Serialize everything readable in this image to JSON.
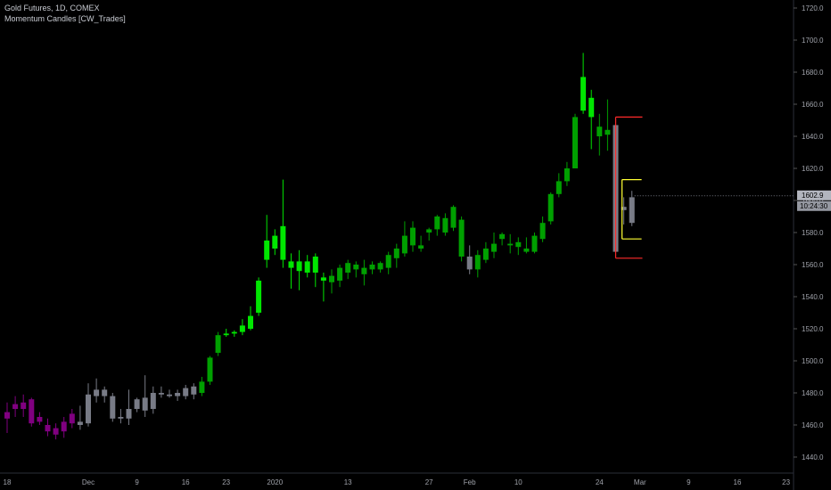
{
  "header": {
    "symbol_line": "Gold Futures, 1D, COMEX",
    "indicator_line": "Momentum Candles [CW_Trades]"
  },
  "price_axis": {
    "ticks": [
      "1440.0",
      "1460.0",
      "1480.0",
      "1500.0",
      "1520.0",
      "1540.0",
      "1560.0",
      "1580.0",
      "1600.0",
      "1620.0",
      "1640.0",
      "1660.0",
      "1680.0",
      "1700.0",
      "1720.0"
    ],
    "last_price_label": "1602.9",
    "countdown_label": "10:24:30"
  },
  "time_axis": {
    "labels": [
      "18",
      "Dec",
      "9",
      "16",
      "23",
      "2020",
      "13",
      "27",
      "Feb",
      "10",
      "24",
      "Mar",
      "9",
      "16",
      "23"
    ]
  },
  "colors": {
    "background": "#000000",
    "bull_bright": "#00e600",
    "bull_dark": "#00a000",
    "bear": "#800080",
    "neutral": "#787b86",
    "red_level": "#ff2a2a",
    "yellow_level": "#ffff33"
  },
  "chart_data": {
    "type": "candlestick",
    "title": "Gold Futures, 1D, COMEX",
    "indicator": "Momentum Candles [CW_Trades]",
    "ylim": [
      1430,
      1725
    ],
    "candles": [
      {
        "o": 1468,
        "h": 1474,
        "l": 1455,
        "c": 1464,
        "color": "bear"
      },
      {
        "o": 1470,
        "h": 1478,
        "l": 1465,
        "c": 1473,
        "color": "bear"
      },
      {
        "o": 1474,
        "h": 1479,
        "l": 1465,
        "c": 1470,
        "color": "bear"
      },
      {
        "o": 1476,
        "h": 1477,
        "l": 1459,
        "c": 1461,
        "color": "bear"
      },
      {
        "o": 1465,
        "h": 1468,
        "l": 1460,
        "c": 1462,
        "color": "bear"
      },
      {
        "o": 1460,
        "h": 1464,
        "l": 1453,
        "c": 1456,
        "color": "bear"
      },
      {
        "o": 1458,
        "h": 1461,
        "l": 1451,
        "c": 1454,
        "color": "bear"
      },
      {
        "o": 1456,
        "h": 1465,
        "l": 1452,
        "c": 1462,
        "color": "bear"
      },
      {
        "o": 1461,
        "h": 1470,
        "l": 1458,
        "c": 1467,
        "color": "bear"
      },
      {
        "o": 1460,
        "h": 1472,
        "l": 1457,
        "c": 1462,
        "color": "neutral"
      },
      {
        "o": 1461,
        "h": 1486,
        "l": 1459,
        "c": 1479,
        "color": "neutral"
      },
      {
        "o": 1478,
        "h": 1489,
        "l": 1474,
        "c": 1482,
        "color": "neutral"
      },
      {
        "o": 1482,
        "h": 1484,
        "l": 1474,
        "c": 1478,
        "color": "neutral"
      },
      {
        "o": 1478,
        "h": 1480,
        "l": 1462,
        "c": 1464,
        "color": "neutral"
      },
      {
        "o": 1464,
        "h": 1470,
        "l": 1461,
        "c": 1465,
        "color": "neutral"
      },
      {
        "o": 1464,
        "h": 1482,
        "l": 1460,
        "c": 1470,
        "color": "neutral"
      },
      {
        "o": 1470,
        "h": 1477,
        "l": 1468,
        "c": 1476,
        "color": "neutral"
      },
      {
        "o": 1469,
        "h": 1491,
        "l": 1465,
        "c": 1477,
        "color": "neutral"
      },
      {
        "o": 1470,
        "h": 1484,
        "l": 1467,
        "c": 1480,
        "color": "neutral"
      },
      {
        "o": 1480,
        "h": 1484,
        "l": 1477,
        "c": 1479,
        "color": "neutral"
      },
      {
        "o": 1479,
        "h": 1482,
        "l": 1477,
        "c": 1478,
        "color": "neutral"
      },
      {
        "o": 1478,
        "h": 1482,
        "l": 1475,
        "c": 1480,
        "color": "neutral"
      },
      {
        "o": 1478,
        "h": 1485,
        "l": 1476,
        "c": 1483,
        "color": "neutral"
      },
      {
        "o": 1484,
        "h": 1486,
        "l": 1476,
        "c": 1479,
        "color": "neutral"
      },
      {
        "o": 1480,
        "h": 1490,
        "l": 1478,
        "c": 1487,
        "color": "bull_dark"
      },
      {
        "o": 1487,
        "h": 1503,
        "l": 1485,
        "c": 1502,
        "color": "bull_dark"
      },
      {
        "o": 1505,
        "h": 1518,
        "l": 1503,
        "c": 1516,
        "color": "bull_dark"
      },
      {
        "o": 1516,
        "h": 1520,
        "l": 1515,
        "c": 1517,
        "color": "bull_bright"
      },
      {
        "o": 1517,
        "h": 1519,
        "l": 1515,
        "c": 1518,
        "color": "bull_bright"
      },
      {
        "o": 1518,
        "h": 1526,
        "l": 1516,
        "c": 1522,
        "color": "bull_bright"
      },
      {
        "o": 1520,
        "h": 1534,
        "l": 1519,
        "c": 1528,
        "color": "bull_bright"
      },
      {
        "o": 1530,
        "h": 1552,
        "l": 1528,
        "c": 1550,
        "color": "bull_bright"
      },
      {
        "o": 1563,
        "h": 1591,
        "l": 1558,
        "c": 1575,
        "color": "bull_bright"
      },
      {
        "o": 1570,
        "h": 1582,
        "l": 1566,
        "c": 1578,
        "color": "bull_bright"
      },
      {
        "o": 1563,
        "h": 1613,
        "l": 1558,
        "c": 1584,
        "color": "bull_bright"
      },
      {
        "o": 1562,
        "h": 1567,
        "l": 1545,
        "c": 1558,
        "color": "bull_bright"
      },
      {
        "o": 1556,
        "h": 1569,
        "l": 1544,
        "c": 1562,
        "color": "bull_bright"
      },
      {
        "o": 1555,
        "h": 1566,
        "l": 1552,
        "c": 1562,
        "color": "bull_bright"
      },
      {
        "o": 1565,
        "h": 1567,
        "l": 1546,
        "c": 1555,
        "color": "bull_bright"
      },
      {
        "o": 1552,
        "h": 1555,
        "l": 1537,
        "c": 1550,
        "color": "bull_bright"
      },
      {
        "o": 1549,
        "h": 1557,
        "l": 1542,
        "c": 1553,
        "color": "bull_dark"
      },
      {
        "o": 1550,
        "h": 1560,
        "l": 1546,
        "c": 1558,
        "color": "bull_dark"
      },
      {
        "o": 1555,
        "h": 1563,
        "l": 1551,
        "c": 1561,
        "color": "bull_dark"
      },
      {
        "o": 1557,
        "h": 1562,
        "l": 1552,
        "c": 1560,
        "color": "bull_dark"
      },
      {
        "o": 1554,
        "h": 1563,
        "l": 1547,
        "c": 1558,
        "color": "bull_dark"
      },
      {
        "o": 1557,
        "h": 1562,
        "l": 1554,
        "c": 1560,
        "color": "bull_dark"
      },
      {
        "o": 1557,
        "h": 1562,
        "l": 1555,
        "c": 1561,
        "color": "bull_dark"
      },
      {
        "o": 1558,
        "h": 1568,
        "l": 1554,
        "c": 1566,
        "color": "bull_dark"
      },
      {
        "o": 1564,
        "h": 1573,
        "l": 1558,
        "c": 1570,
        "color": "bull_dark"
      },
      {
        "o": 1567,
        "h": 1587,
        "l": 1565,
        "c": 1578,
        "color": "bull_dark"
      },
      {
        "o": 1583,
        "h": 1587,
        "l": 1568,
        "c": 1572,
        "color": "bull_dark"
      },
      {
        "o": 1572,
        "h": 1578,
        "l": 1568,
        "c": 1570,
        "color": "bull_dark"
      },
      {
        "o": 1580,
        "h": 1583,
        "l": 1575,
        "c": 1582,
        "color": "bull_dark"
      },
      {
        "o": 1582,
        "h": 1591,
        "l": 1578,
        "c": 1590,
        "color": "bull_dark"
      },
      {
        "o": 1589,
        "h": 1592,
        "l": 1578,
        "c": 1580,
        "color": "bull_dark"
      },
      {
        "o": 1583,
        "h": 1597,
        "l": 1581,
        "c": 1596,
        "color": "bull_dark"
      },
      {
        "o": 1588,
        "h": 1590,
        "l": 1562,
        "c": 1565,
        "color": "bull_dark"
      },
      {
        "o": 1565,
        "h": 1572,
        "l": 1554,
        "c": 1557,
        "color": "neutral"
      },
      {
        "o": 1557,
        "h": 1569,
        "l": 1552,
        "c": 1566,
        "color": "bull_dark"
      },
      {
        "o": 1563,
        "h": 1574,
        "l": 1561,
        "c": 1570,
        "color": "bull_dark"
      },
      {
        "o": 1568,
        "h": 1580,
        "l": 1564,
        "c": 1573,
        "color": "bull_dark"
      },
      {
        "o": 1576,
        "h": 1580,
        "l": 1572,
        "c": 1579,
        "color": "bull_dark"
      },
      {
        "o": 1573,
        "h": 1579,
        "l": 1567,
        "c": 1572,
        "color": "bull_dark"
      },
      {
        "o": 1571,
        "h": 1577,
        "l": 1566,
        "c": 1574,
        "color": "bull_dark"
      },
      {
        "o": 1568,
        "h": 1577,
        "l": 1567,
        "c": 1570,
        "color": "bull_dark"
      },
      {
        "o": 1568,
        "h": 1580,
        "l": 1567,
        "c": 1578,
        "color": "bull_dark"
      },
      {
        "o": 1576,
        "h": 1590,
        "l": 1574,
        "c": 1586,
        "color": "bull_dark"
      },
      {
        "o": 1587,
        "h": 1605,
        "l": 1585,
        "c": 1604,
        "color": "bull_dark"
      },
      {
        "o": 1604,
        "h": 1617,
        "l": 1602,
        "c": 1612,
        "color": "bull_dark"
      },
      {
        "o": 1612,
        "h": 1624,
        "l": 1609,
        "c": 1620,
        "color": "bull_dark"
      },
      {
        "o": 1620,
        "h": 1654,
        "l": 1620,
        "c": 1652,
        "color": "bull_dark"
      },
      {
        "o": 1656,
        "h": 1692,
        "l": 1654,
        "c": 1677,
        "color": "bull_bright"
      },
      {
        "o": 1664,
        "h": 1669,
        "l": 1632,
        "c": 1652,
        "color": "bull_bright"
      },
      {
        "o": 1646,
        "h": 1654,
        "l": 1628,
        "c": 1640,
        "color": "bull_dark"
      },
      {
        "o": 1641,
        "h": 1663,
        "l": 1631,
        "c": 1644,
        "color": "bull_dark"
      },
      {
        "o": 1647,
        "h": 1647,
        "l": 1566,
        "c": 1568,
        "color": "neutral"
      },
      {
        "o": 1594,
        "h": 1602,
        "l": 1585,
        "c": 1596,
        "color": "neutral"
      },
      {
        "o": 1586,
        "h": 1606,
        "l": 1584,
        "c": 1602,
        "color": "neutral"
      }
    ],
    "levels": [
      {
        "name": "red-upper",
        "value": 1652,
        "color": "red_level"
      },
      {
        "name": "red-lower",
        "value": 1564,
        "color": "red_level"
      },
      {
        "name": "yellow-upper",
        "value": 1613,
        "color": "yellow_level"
      },
      {
        "name": "yellow-lower",
        "value": 1576,
        "color": "yellow_level"
      }
    ],
    "last_price": 1602.9
  }
}
